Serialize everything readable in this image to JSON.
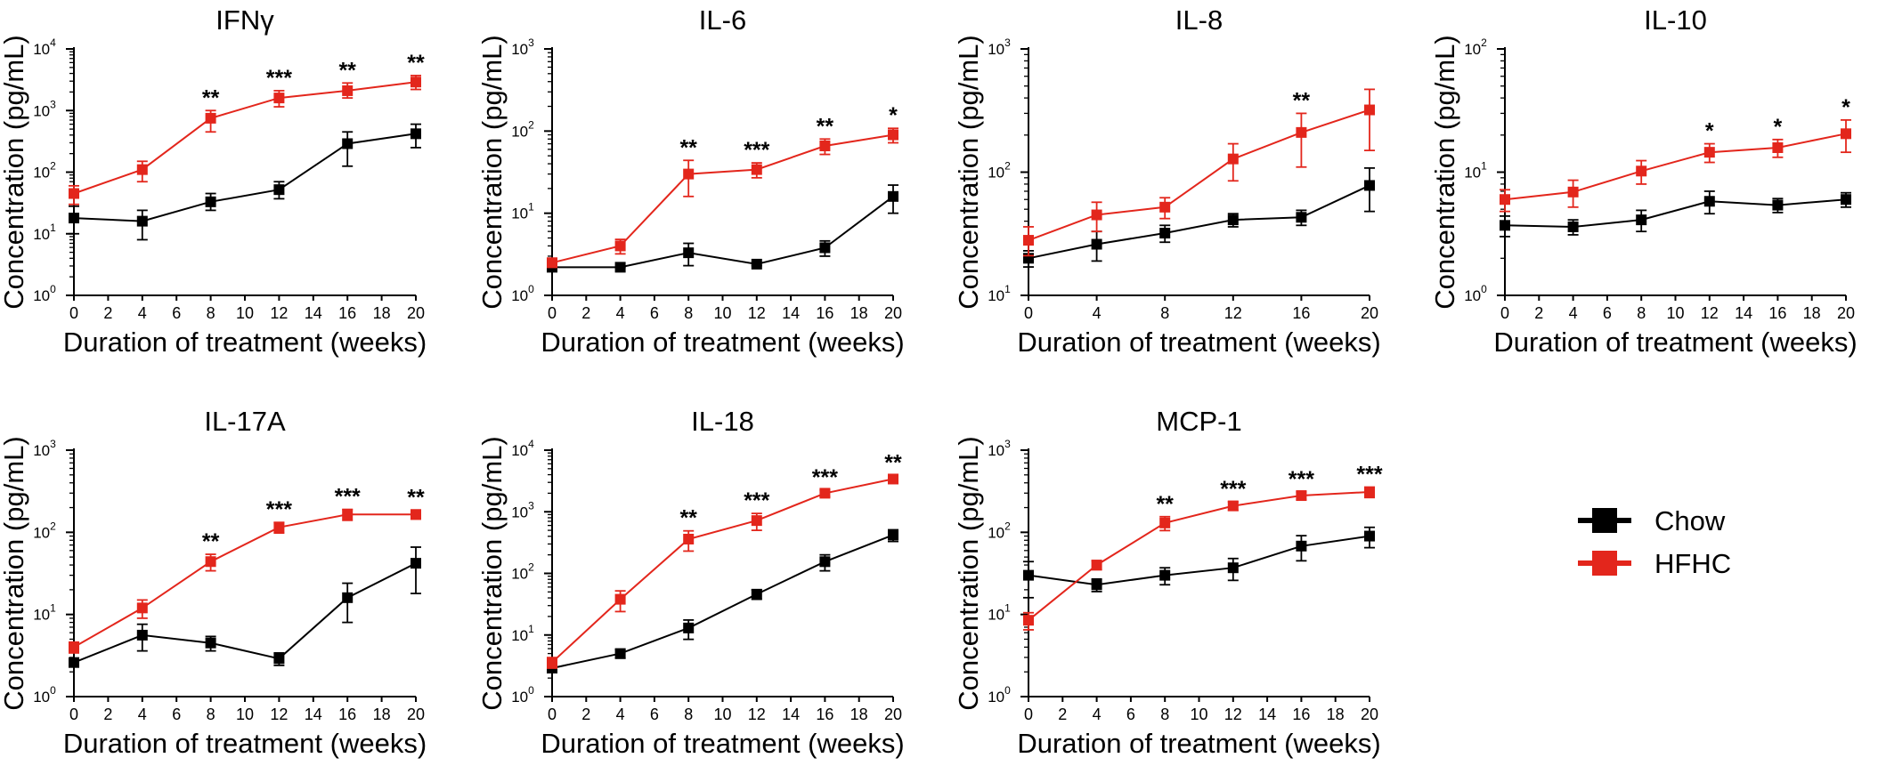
{
  "legend": {
    "entries": [
      {
        "name": "Chow",
        "color": "#000000"
      },
      {
        "name": "HFHC",
        "color": "#e3261c"
      }
    ],
    "placement": "right"
  },
  "chart_data": [
    {
      "type": "line",
      "title": "IFNγ",
      "xlabel": "Duration of treatment (weeks)",
      "ylabel": "Concentration (pg/mL)",
      "yscale": "log",
      "ylim": [
        1,
        10000
      ],
      "xlim": [
        0,
        20
      ],
      "xticks": [
        0,
        2,
        4,
        6,
        8,
        10,
        12,
        14,
        16,
        18,
        20
      ],
      "yticks": [
        {
          "base": "10",
          "exp": "0"
        },
        {
          "base": "10",
          "exp": "1"
        },
        {
          "base": "10",
          "exp": "2"
        },
        {
          "base": "10",
          "exp": "3"
        },
        {
          "base": "10",
          "exp": "4"
        }
      ],
      "x": [
        0,
        4,
        8,
        12,
        16,
        20
      ],
      "series": [
        {
          "name": "Chow",
          "color": "#000000",
          "values": [
            18,
            16,
            33,
            52,
            290,
            420
          ],
          "err_low": [
            10,
            8,
            24,
            37,
            125,
            250
          ],
          "err_high": [
            28,
            24,
            45,
            70,
            450,
            600
          ]
        },
        {
          "name": "HFHC",
          "color": "#e3261c",
          "values": [
            45,
            110,
            750,
            1600,
            2100,
            2900
          ],
          "err_low": [
            30,
            70,
            450,
            1150,
            1600,
            2200
          ],
          "err_high": [
            60,
            150,
            1000,
            2100,
            2800,
            3700
          ]
        }
      ],
      "significance": [
        {
          "x": 8,
          "label": "**"
        },
        {
          "x": 12,
          "label": "***"
        },
        {
          "x": 16,
          "label": "**"
        },
        {
          "x": 20,
          "label": "**"
        }
      ]
    },
    {
      "type": "line",
      "title": "IL-6",
      "xlabel": "Duration of treatment (weeks)",
      "ylabel": "Concentration (pg/mL)",
      "yscale": "log",
      "ylim": [
        1,
        1000
      ],
      "xlim": [
        0,
        20
      ],
      "xticks": [
        0,
        2,
        4,
        6,
        8,
        10,
        12,
        14,
        16,
        18,
        20
      ],
      "yticks": [
        {
          "base": "10",
          "exp": "0"
        },
        {
          "base": "10",
          "exp": "1"
        },
        {
          "base": "10",
          "exp": "2"
        },
        {
          "base": "10",
          "exp": "3"
        }
      ],
      "x": [
        0,
        4,
        8,
        12,
        16,
        20
      ],
      "series": [
        {
          "name": "Chow",
          "color": "#000000",
          "values": [
            2.2,
            2.2,
            3.3,
            2.4,
            3.8,
            16
          ],
          "err_low": [
            2.2,
            2.2,
            2.3,
            2.3,
            3.0,
            10
          ],
          "err_high": [
            2.2,
            2.2,
            4.3,
            2.5,
            4.6,
            22
          ]
        },
        {
          "name": "HFHC",
          "color": "#e3261c",
          "values": [
            2.5,
            4,
            30,
            34,
            66,
            90
          ],
          "err_low": [
            2.2,
            3.2,
            16,
            27,
            52,
            72
          ],
          "err_high": [
            2.8,
            4.8,
            44,
            41,
            80,
            108
          ]
        }
      ],
      "significance": [
        {
          "x": 8,
          "label": "**"
        },
        {
          "x": 12,
          "label": "***"
        },
        {
          "x": 16,
          "label": "**"
        },
        {
          "x": 20,
          "label": "*"
        }
      ]
    },
    {
      "type": "line",
      "title": "IL-8",
      "xlabel": "Duration of treatment (weeks)",
      "ylabel": "Concentration (pg/mL)",
      "yscale": "log",
      "ylim": [
        10,
        1000
      ],
      "xlim": [
        0,
        20
      ],
      "xticks": [
        0,
        4,
        8,
        12,
        16,
        20
      ],
      "yticks": [
        {
          "base": "10",
          "exp": "1"
        },
        {
          "base": "10",
          "exp": "2"
        },
        {
          "base": "10",
          "exp": "3"
        }
      ],
      "x": [
        0,
        4,
        8,
        12,
        16,
        20
      ],
      "series": [
        {
          "name": "Chow",
          "color": "#000000",
          "values": [
            20,
            26,
            32,
            41,
            43,
            78
          ],
          "err_low": [
            17,
            19,
            27,
            36,
            37,
            48
          ],
          "err_high": [
            23,
            33,
            37,
            46,
            49,
            108
          ]
        },
        {
          "name": "HFHC",
          "color": "#e3261c",
          "values": [
            28,
            45,
            52,
            128,
            210,
            320
          ],
          "err_low": [
            21,
            33,
            42,
            85,
            110,
            150
          ],
          "err_high": [
            36,
            57,
            62,
            170,
            300,
            470
          ]
        }
      ],
      "significance": [
        {
          "x": 16,
          "label": "**"
        }
      ]
    },
    {
      "type": "line",
      "title": "IL-10",
      "xlabel": "Duration of treatment (weeks)",
      "ylabel": "Concentration (pg/mL)",
      "yscale": "log",
      "ylim": [
        1,
        100
      ],
      "xlim": [
        0,
        20
      ],
      "xticks": [
        0,
        2,
        4,
        6,
        8,
        10,
        12,
        14,
        16,
        18,
        20
      ],
      "yticks": [
        {
          "base": "10",
          "exp": "0"
        },
        {
          "base": "10",
          "exp": "1"
        },
        {
          "base": "10",
          "exp": "2"
        }
      ],
      "x": [
        0,
        4,
        8,
        12,
        16,
        20
      ],
      "series": [
        {
          "name": "Chow",
          "color": "#000000",
          "values": [
            3.7,
            3.6,
            4.1,
            5.8,
            5.4,
            6.0
          ],
          "err_low": [
            3.0,
            3.1,
            3.3,
            4.6,
            4.7,
            5.2
          ],
          "err_high": [
            4.4,
            4.1,
            4.9,
            7.0,
            6.1,
            6.8
          ]
        },
        {
          "name": "HFHC",
          "color": "#e3261c",
          "values": [
            6.0,
            6.9,
            10.2,
            14.5,
            15.8,
            20.5
          ],
          "err_low": [
            4.8,
            5.2,
            8.0,
            12.0,
            13.2,
            14.5
          ],
          "err_high": [
            7.2,
            8.6,
            12.4,
            17.0,
            18.4,
            26.5
          ]
        }
      ],
      "significance": [
        {
          "x": 12,
          "label": "*"
        },
        {
          "x": 16,
          "label": "*"
        },
        {
          "x": 20,
          "label": "*"
        }
      ]
    },
    {
      "type": "line",
      "title": "IL-17A",
      "xlabel": "Duration of treatment (weeks)",
      "ylabel": "Concentration (pg/mL)",
      "yscale": "log",
      "ylim": [
        1,
        1000
      ],
      "xlim": [
        0,
        20
      ],
      "xticks": [
        0,
        2,
        4,
        6,
        8,
        10,
        12,
        14,
        16,
        18,
        20
      ],
      "yticks": [
        {
          "base": "10",
          "exp": "0"
        },
        {
          "base": "10",
          "exp": "1"
        },
        {
          "base": "10",
          "exp": "2"
        },
        {
          "base": "10",
          "exp": "3"
        }
      ],
      "x": [
        0,
        4,
        8,
        12,
        16,
        20
      ],
      "series": [
        {
          "name": "Chow",
          "color": "#000000",
          "values": [
            2.6,
            5.6,
            4.5,
            2.9,
            16,
            42
          ],
          "err_low": [
            2.3,
            3.6,
            3.6,
            2.4,
            8,
            18
          ],
          "err_high": [
            2.9,
            7.6,
            5.4,
            3.4,
            24,
            66
          ]
        },
        {
          "name": "HFHC",
          "color": "#e3261c",
          "values": [
            4.0,
            12,
            44,
            115,
            165,
            165
          ],
          "err_low": [
            3.4,
            9,
            34,
            98,
            140,
            145
          ],
          "err_high": [
            4.6,
            15,
            54,
            132,
            190,
            185
          ]
        }
      ],
      "significance": [
        {
          "x": 8,
          "label": "**"
        },
        {
          "x": 12,
          "label": "***"
        },
        {
          "x": 16,
          "label": "***"
        },
        {
          "x": 20,
          "label": "**"
        }
      ]
    },
    {
      "type": "line",
      "title": "IL-18",
      "xlabel": "Duration of treatment (weeks)",
      "ylabel": "Concentration (pg/mL)",
      "yscale": "log",
      "ylim": [
        1,
        10000
      ],
      "xlim": [
        0,
        20
      ],
      "xticks": [
        0,
        2,
        4,
        6,
        8,
        10,
        12,
        14,
        16,
        18,
        20
      ],
      "yticks": [
        {
          "base": "10",
          "exp": "0"
        },
        {
          "base": "10",
          "exp": "1"
        },
        {
          "base": "10",
          "exp": "2"
        },
        {
          "base": "10",
          "exp": "3"
        },
        {
          "base": "10",
          "exp": "4"
        }
      ],
      "x": [
        0,
        4,
        8,
        12,
        16,
        20
      ],
      "series": [
        {
          "name": "Chow",
          "color": "#000000",
          "values": [
            2.9,
            5,
            13,
            46,
            155,
            420
          ],
          "err_low": [
            2.5,
            4.2,
            8.5,
            38,
            110,
            330
          ],
          "err_high": [
            3.3,
            5.8,
            17.5,
            54,
            200,
            510
          ]
        },
        {
          "name": "HFHC",
          "color": "#e3261c",
          "values": [
            3.6,
            38,
            360,
            720,
            2000,
            3400
          ],
          "err_low": [
            2.9,
            24,
            230,
            500,
            1750,
            2900
          ],
          "err_high": [
            4.3,
            52,
            490,
            940,
            2250,
            3900
          ]
        }
      ],
      "significance": [
        {
          "x": 8,
          "label": "**"
        },
        {
          "x": 12,
          "label": "***"
        },
        {
          "x": 16,
          "label": "***"
        },
        {
          "x": 20,
          "label": "**"
        }
      ]
    },
    {
      "type": "line",
      "title": "MCP-1",
      "xlabel": "Duration of treatment (weeks)",
      "ylabel": "Concentration (pg/mL)",
      "yscale": "log",
      "ylim": [
        1,
        1000
      ],
      "xlim": [
        0,
        20
      ],
      "xticks": [
        0,
        2,
        4,
        6,
        8,
        10,
        12,
        14,
        16,
        18,
        20
      ],
      "yticks": [
        {
          "base": "10",
          "exp": "0"
        },
        {
          "base": "10",
          "exp": "1"
        },
        {
          "base": "10",
          "exp": "2"
        },
        {
          "base": "10",
          "exp": "3"
        }
      ],
      "x": [
        0,
        4,
        8,
        12,
        16,
        20
      ],
      "series": [
        {
          "name": "Chow",
          "color": "#000000",
          "values": [
            30,
            23,
            30,
            37,
            68,
            90
          ],
          "err_low": [
            16,
            19,
            23,
            26,
            45,
            65
          ],
          "err_high": [
            44,
            27,
            37,
            48,
            91,
            115
          ]
        },
        {
          "name": "HFHC",
          "color": "#e3261c",
          "values": [
            8.5,
            40,
            130,
            210,
            280,
            310
          ],
          "err_low": [
            6.5,
            35,
            105,
            185,
            250,
            265
          ],
          "err_high": [
            10.5,
            45,
            155,
            235,
            310,
            355
          ]
        }
      ],
      "significance": [
        {
          "x": 8,
          "label": "**"
        },
        {
          "x": 12,
          "label": "***"
        },
        {
          "x": 16,
          "label": "***"
        },
        {
          "x": 20,
          "label": "***"
        }
      ]
    }
  ]
}
